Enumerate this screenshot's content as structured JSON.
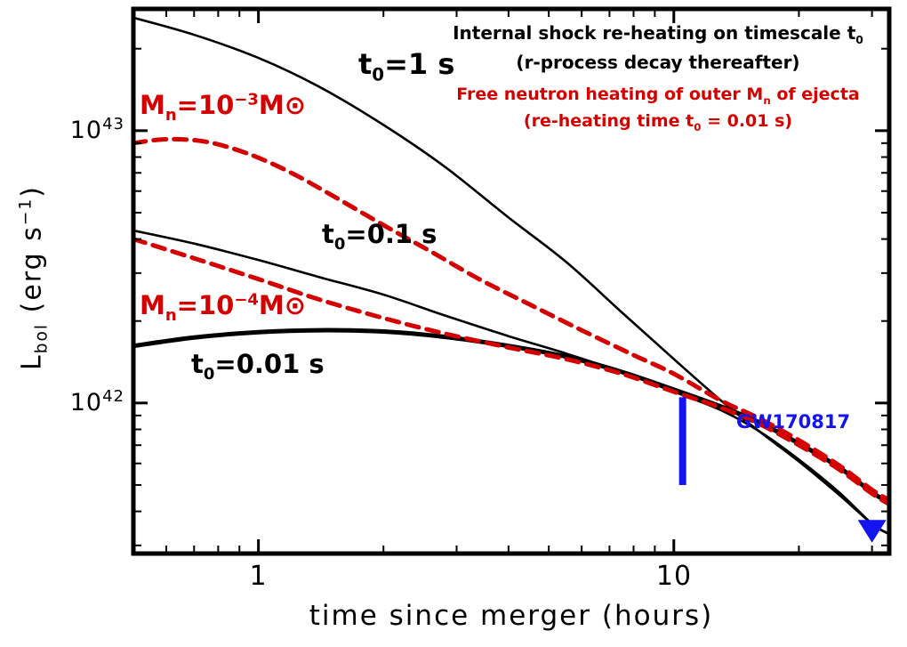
{
  "figure": {
    "background": "#ffffff",
    "colors": {
      "black": "#000000",
      "red": "#d40000",
      "blue": "#1414f0"
    }
  },
  "annotations": {
    "black_header": {
      "line1_pre": "Internal shock re-heating on timescale t",
      "line1_sub": "0",
      "line2": "(r-process decay thereafter)"
    },
    "red_header": {
      "line1_pre": "Free neutron heating of outer M",
      "line1_sub": "n",
      "line1_post": " of ejecta",
      "line2_pre": "(re-heating time t",
      "line2_sub": "0",
      "line2_post": " = 0.01 s)"
    },
    "gw_label": "GW170817"
  },
  "curve_labels": {
    "t0_1": {
      "pre": "t",
      "sub": "0",
      "post": "=1 s"
    },
    "t0_01": {
      "pre": "t",
      "sub": "0",
      "post": "=0.1 s"
    },
    "t0_001": {
      "pre": "t",
      "sub": "0",
      "post": "=0.01 s"
    },
    "mn_3": {
      "pre": "M",
      "sub": "n",
      "mid": "=10",
      "sup": "−3",
      "post": "M",
      "odot": "⊙"
    },
    "mn_4": {
      "pre": "M",
      "sub": "n",
      "mid": "=10",
      "sup": "−4",
      "post": "M",
      "odot": "⊙"
    }
  },
  "axes": {
    "xlabel": "time since merger (hours)",
    "ylabel": {
      "pre": "L",
      "sub": "bol",
      "mid": " (erg s",
      "sup": "−1",
      "post": ")"
    },
    "x_ticks": [
      "1",
      "10"
    ],
    "y_ticks": [
      {
        "base": "10",
        "exp": "43"
      },
      {
        "base": "10",
        "exp": "42"
      }
    ]
  },
  "chart_data": {
    "type": "line",
    "title": "",
    "xlabel": "time since merger (hours)",
    "ylabel": "L_bol (erg s^-1)",
    "x_scale": "log",
    "y_scale": "log",
    "xlim": [
      0.5,
      33
    ],
    "ylim": [
      2.8e+41,
      2.8e+43
    ],
    "x_major_ticks": [
      1,
      10
    ],
    "x_minor_ticks": [
      0.6,
      0.7,
      0.8,
      0.9,
      2,
      3,
      4,
      5,
      6,
      7,
      8,
      9,
      20,
      30
    ],
    "y_major_ticks": [
      1e+42,
      1e+43
    ],
    "y_minor_ticks": [
      3e+41,
      4e+41,
      5e+41,
      6e+41,
      7e+41,
      8e+41,
      9e+41,
      2e+42,
      3e+42,
      4e+42,
      5e+42,
      6e+42,
      7e+42,
      8e+42,
      9e+42,
      2e+43
    ],
    "annotations": [
      "Internal shock re-heating on timescale t0 (r-process decay thereafter)",
      "Free neutron heating of outer Mn of ejecta (re-heating time t0 = 0.01 s)",
      "GW170817"
    ],
    "series": [
      {
        "name": "internal-shock-t0-1s",
        "label": "t0 = 1 s",
        "color": "#000000",
        "width": 2.6,
        "dash": null,
        "x": [
          0.5,
          0.7,
          1.0,
          1.4,
          2.0,
          2.8,
          4.0,
          5.5,
          7.5,
          10,
          13,
          16,
          20,
          25,
          30,
          33
        ],
        "y": [
          2.6e+43,
          2.25e+43,
          1.85e+43,
          1.45e+43,
          1.05e+43,
          7.4e+42,
          4.8e+42,
          3.3e+42,
          2.15e+42,
          1.45e+42,
          1.02e+42,
          7.9e+41,
          6.1e+41,
          4.6e+41,
          3.6e+41,
          3.3e+41
        ]
      },
      {
        "name": "internal-shock-t0-0.1s",
        "label": "t0 = 0.1 s",
        "color": "#000000",
        "width": 2.6,
        "dash": null,
        "x": [
          0.5,
          0.7,
          1.0,
          1.4,
          2.0,
          2.8,
          4.0,
          5.5,
          7.5,
          10,
          13,
          16,
          20,
          25,
          30,
          33
        ],
        "y": [
          4.3e+42,
          3.85e+42,
          3.35e+42,
          2.9e+42,
          2.5e+42,
          2.1e+42,
          1.76e+42,
          1.52e+42,
          1.3e+42,
          1.1e+42,
          9.4e+41,
          7.9e+41,
          6.2e+41,
          4.7e+41,
          3.6e+41,
          3.3e+41
        ]
      },
      {
        "name": "internal-shock-t0-0.01s",
        "label": "t0 = 0.01 s",
        "color": "#000000",
        "width": 5,
        "dash": null,
        "x": [
          0.5,
          0.7,
          1.0,
          1.4,
          2.0,
          2.8,
          4.0,
          5.5,
          7.5,
          10,
          13,
          16,
          20,
          25,
          30,
          33
        ],
        "y": [
          1.62e+42,
          1.74e+42,
          1.82e+42,
          1.85e+42,
          1.83e+42,
          1.75e+42,
          1.62e+42,
          1.48e+42,
          1.3e+42,
          1.12e+42,
          9.7e+41,
          8.5e+41,
          7.1e+41,
          5.8e+41,
          4.7e+41,
          4.3e+41
        ]
      },
      {
        "name": "free-neutron-Mn-1e-3",
        "label": "Mn = 10^-3 Msun",
        "color": "#d40000",
        "width": 5,
        "dash": "14 9",
        "x": [
          0.5,
          0.6,
          0.75,
          0.95,
          1.2,
          1.5,
          2.0,
          2.6,
          3.4,
          4.5,
          6.0,
          8.0,
          10,
          13,
          16,
          20,
          25,
          30,
          33
        ],
        "y": [
          9e+42,
          9.3e+42,
          9.1e+42,
          8.2e+42,
          7e+42,
          5.8e+42,
          4.5e+42,
          3.6e+42,
          2.85e+42,
          2.3e+42,
          1.85e+42,
          1.5e+42,
          1.28e+42,
          1.02e+42,
          8.8e+41,
          7.3e+41,
          5.9e+41,
          4.8e+41,
          4.4e+41
        ]
      },
      {
        "name": "free-neutron-Mn-1e-4",
        "label": "Mn = 10^-4 Msun",
        "color": "#d40000",
        "width": 5,
        "dash": "14 9",
        "x": [
          0.5,
          0.7,
          1.0,
          1.4,
          2.0,
          2.8,
          4.0,
          5.5,
          7.5,
          10,
          13,
          16,
          20,
          25,
          30,
          33
        ],
        "y": [
          4e+42,
          3.4e+42,
          2.85e+42,
          2.4e+42,
          2.05e+42,
          1.8e+42,
          1.6e+42,
          1.45e+42,
          1.28e+42,
          1.1e+42,
          9.6e+41,
          8.4e+41,
          7e+41,
          5.7e+41,
          4.65e+41,
          4.25e+41
        ]
      }
    ],
    "data_points": [
      {
        "name": "GW170817",
        "type": "errorbar",
        "x": 10.5,
        "y_low": 5e+41,
        "y_high": 1.05e+42,
        "color": "#1414f0",
        "width": 8
      },
      {
        "name": "GW170817-upper-limit",
        "type": "triangle-down",
        "x": 30,
        "y": 3.4e+41,
        "color": "#1414f0",
        "size": 16
      }
    ]
  }
}
